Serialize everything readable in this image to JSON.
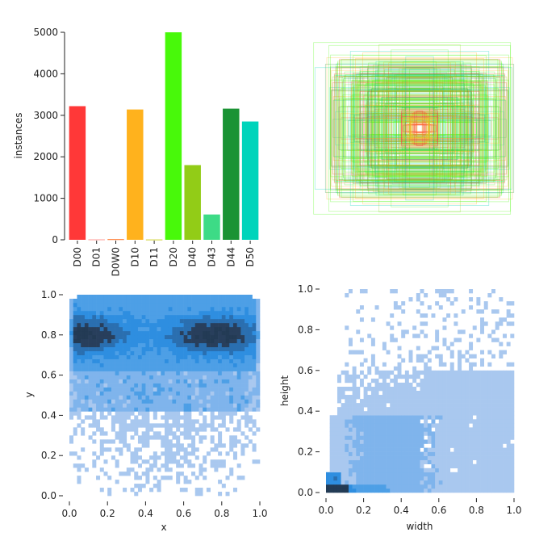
{
  "chart_data": [
    {
      "type": "bar",
      "categories": [
        "D00",
        "D01",
        "D0W0",
        "D10",
        "D11",
        "D20",
        "D40",
        "D43",
        "D44",
        "D50"
      ],
      "values": [
        3220,
        10,
        15,
        3140,
        8,
        5000,
        1800,
        610,
        3160,
        2850
      ],
      "colors": [
        "#ff3838",
        "#ff9d97",
        "#ff701f",
        "#ffb21d",
        "#cfd231",
        "#48f90a",
        "#92cc17",
        "#3ddb86",
        "#1a9334",
        "#00d4bb"
      ],
      "xlabel": "",
      "ylabel": "instances",
      "ylim": [
        0,
        5000
      ],
      "yticks": [
        0,
        1000,
        2000,
        3000,
        4000,
        5000
      ]
    },
    {
      "type": "box-overlay",
      "description_color": "mixed",
      "xlabel": "",
      "ylabel": ""
    },
    {
      "type": "heatmap",
      "xlabel": "x",
      "ylabel": "y",
      "xlim": [
        0,
        1
      ],
      "ylim": [
        0,
        1
      ],
      "xticks": [
        "0.0",
        "0.2",
        "0.4",
        "0.6",
        "0.8",
        "1.0"
      ],
      "yticks": [
        "0.0",
        "0.2",
        "0.4",
        "0.6",
        "0.8",
        "1.0"
      ],
      "colormap": [
        "#a9c8ef",
        "#2e8ee0",
        "#233b55"
      ]
    },
    {
      "type": "heatmap",
      "xlabel": "width",
      "ylabel": "height",
      "xlim": [
        0,
        1
      ],
      "ylim": [
        0,
        1
      ],
      "xticks": [
        "0.0",
        "0.2",
        "0.4",
        "0.6",
        "0.8",
        "1.0"
      ],
      "yticks": [
        "0.0",
        "0.2",
        "0.4",
        "0.6",
        "0.8",
        "1.0"
      ],
      "colormap": [
        "#a9c8ef",
        "#2e8ee0",
        "#233b55"
      ]
    }
  ]
}
